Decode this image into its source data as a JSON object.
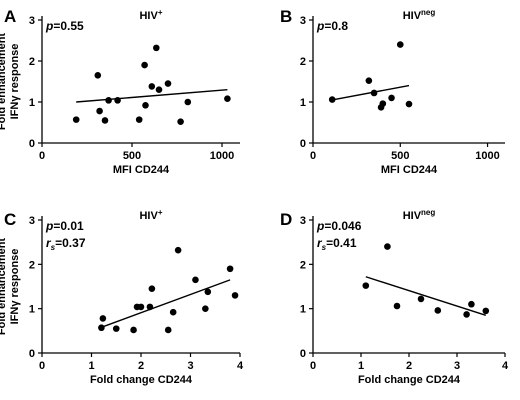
{
  "chart_data": [
    {
      "type": "scatter",
      "panel": "A",
      "title": "HIV",
      "title_sup": "+",
      "stats": [
        "p=0.55"
      ],
      "xlabel": "MFI CD244",
      "ylabel_lines": [
        "Fold enhancement",
        "IFNγ response"
      ],
      "xlim": [
        0,
        1100
      ],
      "ylim": [
        0,
        3
      ],
      "xticks": [
        0,
        500,
        1000
      ],
      "yticks": [
        0,
        1,
        2,
        3
      ],
      "points": [
        [
          190,
          0.57
        ],
        [
          310,
          1.65
        ],
        [
          320,
          0.78
        ],
        [
          350,
          0.55
        ],
        [
          370,
          1.04
        ],
        [
          420,
          1.04
        ],
        [
          540,
          0.57
        ],
        [
          570,
          1.9
        ],
        [
          575,
          0.92
        ],
        [
          610,
          1.38
        ],
        [
          635,
          2.32
        ],
        [
          650,
          1.3
        ],
        [
          700,
          1.45
        ],
        [
          770,
          0.52
        ],
        [
          810,
          1.0
        ],
        [
          1030,
          1.08
        ]
      ],
      "trendline": [
        [
          190,
          1.0
        ],
        [
          1030,
          1.3
        ]
      ]
    },
    {
      "type": "scatter",
      "panel": "B",
      "title": "HIV",
      "title_sup": "neg",
      "stats": [
        "p=0.8"
      ],
      "xlabel": "MFI CD244",
      "ylabel_lines": [],
      "xlim": [
        0,
        1100
      ],
      "ylim": [
        0,
        3
      ],
      "xticks": [
        0,
        500,
        1000
      ],
      "yticks": [
        0,
        1,
        2,
        3
      ],
      "points": [
        [
          110,
          1.06
        ],
        [
          320,
          1.52
        ],
        [
          350,
          1.22
        ],
        [
          390,
          0.87
        ],
        [
          400,
          0.96
        ],
        [
          450,
          1.1
        ],
        [
          500,
          2.4
        ],
        [
          550,
          0.95
        ]
      ],
      "trendline": [
        [
          110,
          1.05
        ],
        [
          550,
          1.4
        ]
      ]
    },
    {
      "type": "scatter",
      "panel": "C",
      "title": "HIV",
      "title_sup": "+",
      "stats": [
        "p=0.01",
        "r_s=0.37"
      ],
      "xlabel": "Fold change CD244",
      "ylabel_lines": [
        "Fold enhancement",
        "IFNγ response"
      ],
      "xlim": [
        0,
        4
      ],
      "ylim": [
        0,
        3
      ],
      "xticks": [
        0,
        1,
        2,
        3,
        4
      ],
      "yticks": [
        0,
        1,
        2,
        3
      ],
      "points": [
        [
          1.2,
          0.57
        ],
        [
          1.23,
          0.78
        ],
        [
          1.5,
          0.55
        ],
        [
          1.85,
          0.52
        ],
        [
          1.92,
          1.04
        ],
        [
          2.0,
          1.04
        ],
        [
          2.18,
          1.04
        ],
        [
          2.22,
          1.45
        ],
        [
          2.55,
          0.52
        ],
        [
          2.65,
          0.92
        ],
        [
          2.75,
          2.32
        ],
        [
          3.1,
          1.65
        ],
        [
          3.3,
          1.0
        ],
        [
          3.35,
          1.38
        ],
        [
          3.8,
          1.9
        ],
        [
          3.9,
          1.3
        ]
      ],
      "trendline": [
        [
          1.2,
          0.58
        ],
        [
          3.8,
          1.65
        ]
      ]
    },
    {
      "type": "scatter",
      "panel": "D",
      "title": "HIV",
      "title_sup": "neg",
      "stats": [
        "p=0.046",
        "r_s=0.41"
      ],
      "xlabel": "Fold change CD244",
      "ylabel_lines": [],
      "xlim": [
        0,
        4
      ],
      "ylim": [
        0,
        3
      ],
      "xticks": [
        0,
        1,
        2,
        3,
        4
      ],
      "yticks": [
        0,
        1,
        2,
        3
      ],
      "points": [
        [
          1.1,
          1.52
        ],
        [
          1.55,
          2.4
        ],
        [
          1.75,
          1.06
        ],
        [
          2.25,
          1.22
        ],
        [
          2.6,
          0.96
        ],
        [
          3.2,
          0.87
        ],
        [
          3.3,
          1.1
        ],
        [
          3.6,
          0.95
        ]
      ],
      "trendline": [
        [
          1.1,
          1.72
        ],
        [
          3.6,
          0.85
        ]
      ]
    }
  ]
}
